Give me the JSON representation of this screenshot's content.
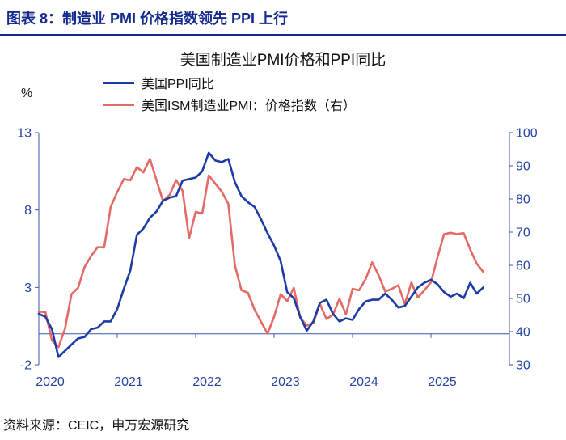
{
  "header": {
    "title": "图表 8：制造业 PMI 价格指数领先 PPI 上行"
  },
  "source": {
    "text": "资料来源：CEIC，申万宏源研究"
  },
  "colors": {
    "navy": "#122A8E",
    "axis_text": "#2644A5",
    "axis_line": "#3A57AD",
    "ppi_blue": "#1C3BA5",
    "pmi_red": "#E36A66"
  },
  "chart_data": {
    "type": "line",
    "title": "美国制造业PMI价格和PPI同比",
    "unit_label": "%",
    "x_unit": "month",
    "x_start": "2020-01",
    "x_ticks": [
      "2020",
      "2021",
      "2022",
      "2023",
      "2024",
      "2025"
    ],
    "left_axis": {
      "min": -2,
      "max": 13,
      "ticks": [
        13,
        8,
        3,
        -2
      ]
    },
    "right_axis": {
      "min": 30,
      "max": 100,
      "ticks": [
        100,
        90,
        80,
        70,
        60,
        50,
        40,
        30
      ]
    },
    "legend": [
      {
        "label": "美国PPI同比",
        "color": "#1C3BA5"
      },
      {
        "label": "美国ISM制造业PMI：价格指数（右）",
        "color": "#E36A66"
      }
    ],
    "grid": false,
    "legend_position": "top-left",
    "series": [
      {
        "name": "美国PPI同比",
        "axis": "left",
        "color": "#1C3BA5",
        "values": [
          1.3,
          1.1,
          0.3,
          -1.5,
          -1.1,
          -0.7,
          -0.3,
          -0.2,
          0.3,
          0.4,
          0.8,
          0.8,
          1.6,
          2.9,
          4.1,
          6.4,
          6.8,
          7.5,
          7.9,
          8.6,
          8.8,
          8.9,
          9.9,
          10.0,
          10.1,
          10.5,
          11.7,
          11.2,
          11.1,
          11.3,
          9.8,
          8.9,
          8.5,
          8.2,
          7.4,
          6.5,
          5.7,
          4.7,
          2.7,
          2.3,
          1.1,
          0.2,
          0.8,
          2.0,
          2.2,
          1.3,
          0.8,
          1.0,
          0.9,
          1.6,
          2.1,
          2.2,
          2.2,
          2.6,
          2.2,
          1.7,
          1.8,
          2.4,
          3.0,
          3.3,
          3.5,
          3.2,
          2.7,
          2.4,
          2.6,
          2.3,
          3.3,
          2.6,
          3.0
        ]
      },
      {
        "name": "美国ISM制造业PMI：价格指数（右）",
        "axis": "right",
        "color": "#E36A66",
        "values": [
          46.0,
          45.9,
          37.4,
          35.3,
          40.8,
          51.3,
          53.2,
          59.5,
          62.8,
          65.5,
          65.4,
          77.6,
          82.1,
          86.0,
          85.6,
          89.6,
          88.0,
          92.1,
          85.7,
          79.4,
          81.2,
          85.7,
          82.4,
          68.2,
          76.1,
          75.6,
          87.1,
          84.6,
          82.2,
          78.5,
          60.0,
          52.5,
          51.7,
          46.6,
          43.0,
          39.4,
          44.5,
          51.3,
          49.2,
          53.2,
          44.2,
          41.8,
          42.6,
          48.4,
          43.8,
          45.1,
          49.9,
          45.2,
          52.9,
          52.5,
          55.8,
          60.9,
          57.0,
          52.1,
          52.9,
          54.0,
          48.3,
          54.8,
          50.3,
          52.5,
          54.9,
          62.4,
          69.4,
          69.8,
          69.4,
          69.7,
          64.8,
          60.5,
          58.0
        ]
      }
    ]
  }
}
